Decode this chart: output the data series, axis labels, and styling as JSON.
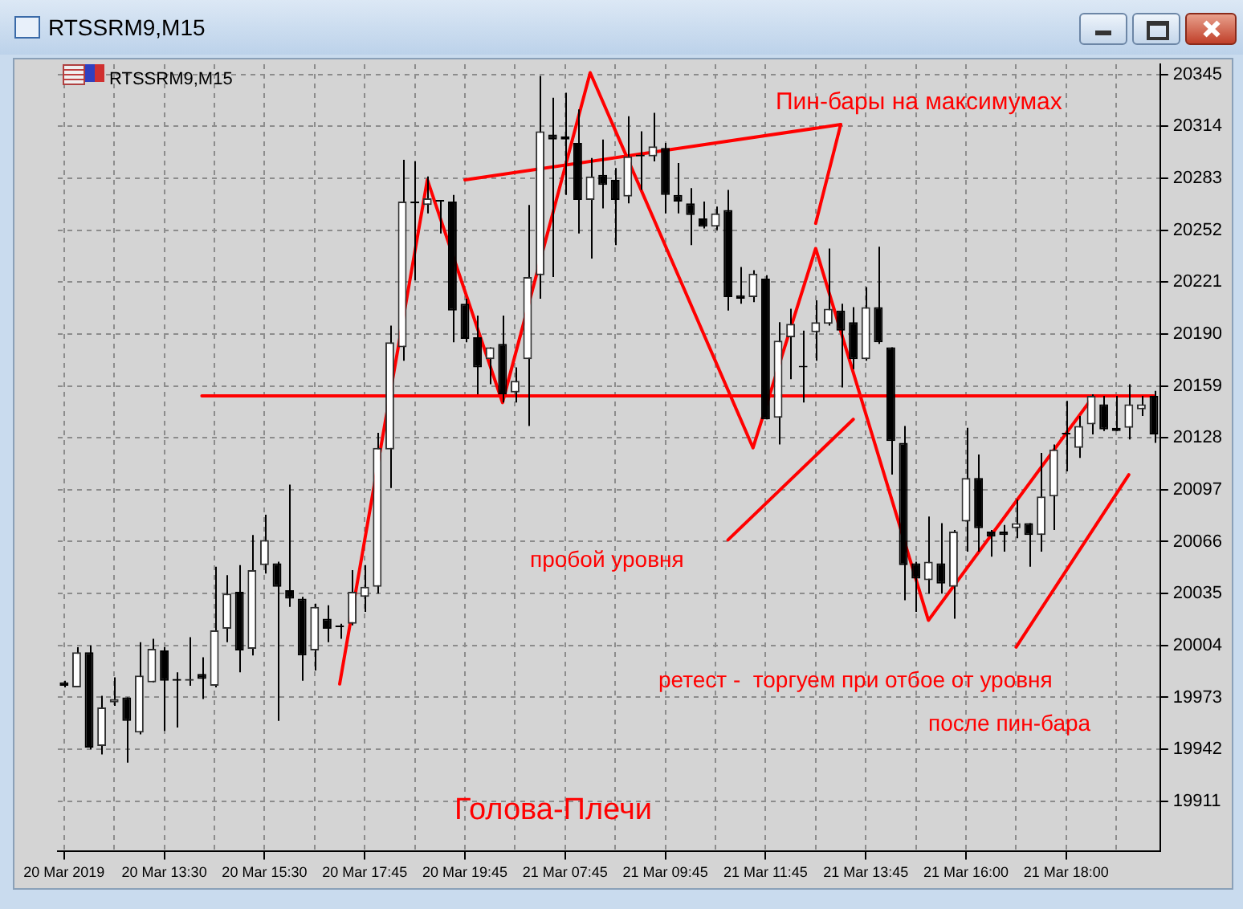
{
  "chart_data": {
    "type": "candlestick",
    "title": "RTSSRM9,M15",
    "categories": [
      "20 Mar 2019",
      null,
      null,
      null,
      null,
      null,
      null,
      null,
      "20 Mar 13:30",
      null,
      null,
      null,
      null,
      null,
      null,
      null,
      "20 Mar 15:30",
      null,
      null,
      null,
      null,
      null,
      null,
      null,
      "20 Mar 17:45",
      null,
      null,
      null,
      null,
      null,
      null,
      null,
      "20 Mar 19:45",
      null,
      null,
      null,
      null,
      null,
      null,
      null,
      "21 Mar 07:45",
      null,
      null,
      null,
      null,
      null,
      null,
      null,
      "21 Mar 09:45",
      null,
      null,
      null,
      null,
      null,
      null,
      null,
      "21 Mar 11:45",
      null,
      null,
      null,
      null,
      null,
      null,
      null,
      "21 Mar 13:45",
      null,
      null,
      null,
      null,
      null,
      null,
      null,
      "21 Mar 16:00",
      null,
      null,
      null,
      null,
      null,
      null,
      null,
      "21 Mar 18:00",
      null,
      null,
      null,
      null,
      null,
      null,
      null
    ],
    "ohlc": [
      [
        19982,
        19983,
        19979,
        19980
      ],
      [
        19979,
        20003,
        19979,
        20000
      ],
      [
        20000,
        20004,
        19942,
        19943
      ],
      [
        19944,
        19974,
        19939,
        19967
      ],
      [
        19970,
        19985,
        19968,
        19972
      ],
      [
        19973,
        19973,
        19934,
        19959
      ],
      [
        19952,
        20006,
        19951,
        19986
      ],
      [
        19982,
        20008,
        19982,
        20002
      ],
      [
        20001,
        20003,
        19953,
        19983
      ],
      [
        19984,
        19988,
        19955,
        19983
      ],
      [
        19983,
        20009,
        19980,
        19984
      ],
      [
        19987,
        19997,
        19972,
        19984
      ],
      [
        19980,
        20051,
        19979,
        20013
      ],
      [
        20014,
        20046,
        20006,
        20035
      ],
      [
        20036,
        20052,
        19988,
        20001
      ],
      [
        20002,
        20070,
        19998,
        20049
      ],
      [
        20052,
        20082,
        20047,
        20067
      ],
      [
        20053,
        20054,
        19959,
        20039
      ],
      [
        20037,
        20100,
        20027,
        20032
      ],
      [
        20032,
        20033,
        19983,
        19998
      ],
      [
        20001,
        20029,
        19989,
        20027
      ],
      [
        20020,
        20028,
        20006,
        20014
      ],
      [
        20015,
        20017,
        20008,
        20015
      ],
      [
        20017,
        20049,
        20016,
        20036
      ],
      [
        20033,
        20052,
        20024,
        20039
      ],
      [
        20039,
        20131,
        20035,
        20122
      ],
      [
        20121,
        20195,
        20098,
        20185
      ],
      [
        20182,
        20294,
        20174,
        20269
      ],
      [
        20269,
        20293,
        20222,
        20268
      ],
      [
        20267,
        20284,
        20262,
        20271
      ],
      [
        20270,
        20270,
        20250,
        20269
      ],
      [
        20269,
        20273,
        20185,
        20204
      ],
      [
        20208,
        20211,
        20185,
        20187
      ],
      [
        20188,
        20201,
        20154,
        20170
      ],
      [
        20175,
        20182,
        20160,
        20182
      ],
      [
        20184,
        20201,
        20149,
        20154
      ],
      [
        20155,
        20170,
        20149,
        20162
      ],
      [
        20175,
        20267,
        20135,
        20224
      ],
      [
        20225,
        20344,
        20211,
        20311
      ],
      [
        20309,
        20331,
        20224,
        20306
      ],
      [
        20308,
        20334,
        20273,
        20306
      ],
      [
        20304,
        20324,
        20250,
        20270
      ],
      [
        20270,
        20295,
        20235,
        20284
      ],
      [
        20285,
        20306,
        20265,
        20279
      ],
      [
        20282,
        20289,
        20243,
        20270
      ],
      [
        20272,
        20320,
        20268,
        20296
      ],
      [
        20297,
        20311,
        20276,
        20296
      ],
      [
        20296,
        20322,
        20293,
        20302
      ],
      [
        20301,
        20304,
        20262,
        20273
      ],
      [
        20273,
        20292,
        20262,
        20269
      ],
      [
        20268,
        20277,
        20243,
        20261
      ],
      [
        20259,
        20269,
        20253,
        20254
      ],
      [
        20254,
        20266,
        20252,
        20262
      ],
      [
        20264,
        20276,
        20204,
        20212
      ],
      [
        20213,
        20230,
        20208,
        20211
      ],
      [
        20212,
        20228,
        20209,
        20226
      ],
      [
        20223,
        20225,
        20139,
        20139
      ],
      [
        20140,
        20197,
        20124,
        20186
      ],
      [
        20188,
        20205,
        20163,
        20196
      ],
      [
        20170,
        20192,
        20149,
        20170
      ],
      [
        20191,
        20210,
        20174,
        20197
      ],
      [
        20196,
        20241,
        20195,
        20205
      ],
      [
        20204,
        20208,
        20158,
        20192
      ],
      [
        20197,
        20206,
        20169,
        20175
      ],
      [
        20175,
        20218,
        20174,
        20206
      ],
      [
        20206,
        20242,
        20184,
        20185
      ],
      [
        20182,
        20182,
        20106,
        20126
      ],
      [
        20125,
        20135,
        20031,
        20052
      ],
      [
        20053,
        20054,
        20024,
        20044
      ],
      [
        20043,
        20081,
        20035,
        20054
      ],
      [
        20053,
        20077,
        20035,
        20041
      ],
      [
        20039,
        20073,
        20020,
        20072
      ],
      [
        20078,
        20134,
        20060,
        20104
      ],
      [
        20104,
        20118,
        20060,
        20074
      ],
      [
        20072,
        20073,
        20057,
        20069
      ],
      [
        20072,
        20076,
        20060,
        20070
      ],
      [
        20074,
        20091,
        20068,
        20077
      ],
      [
        20077,
        20077,
        20051,
        20070
      ],
      [
        20070,
        20119,
        20060,
        20093
      ],
      [
        20093,
        20124,
        20073,
        20121
      ],
      [
        20130,
        20150,
        20108,
        20130
      ],
      [
        20122,
        20141,
        20116,
        20135
      ],
      [
        20136,
        20154,
        20130,
        20153
      ],
      [
        20148,
        20153,
        20132,
        20133
      ],
      [
        20134,
        20153,
        20132,
        20132
      ],
      [
        20134,
        20160,
        20127,
        20148
      ],
      [
        20145,
        20153,
        20141,
        20148
      ],
      [
        20153,
        20156,
        20125,
        20130
      ]
    ],
    "series": [
      {
        "type": "line",
        "color": "#ff0000",
        "values": [
          null,
          null,
          null,
          null,
          null,
          null,
          null,
          null,
          null,
          null,
          null,
          null,
          null,
          null,
          null,
          null,
          null,
          null,
          null,
          null,
          null,
          null,
          19981,
          null,
          null,
          null,
          null,
          null,
          null,
          20282,
          null,
          null,
          null,
          null,
          null,
          20149,
          null,
          null,
          null,
          null,
          null,
          null,
          20346,
          null,
          null,
          null,
          null,
          null,
          null,
          null,
          null,
          null,
          null,
          null,
          null,
          20122,
          null,
          null,
          null,
          null,
          20241,
          null,
          null,
          null,
          null,
          null,
          null,
          null,
          null,
          20019,
          null,
          null,
          null,
          null,
          null,
          null,
          null,
          null,
          null,
          null,
          null,
          null,
          20151,
          null,
          null,
          null,
          null,
          null
        ]
      },
      {
        "type": "line",
        "color": "#ff0000",
        "values": [
          null,
          null,
          null,
          null,
          null,
          null,
          null,
          null,
          null,
          null,
          null,
          20153,
          null,
          null,
          null,
          null,
          null,
          null,
          null,
          null,
          null,
          null,
          null,
          null,
          null,
          null,
          null,
          null,
          null,
          null,
          null,
          null,
          null,
          null,
          null,
          null,
          null,
          null,
          null,
          null,
          null,
          null,
          null,
          null,
          null,
          null,
          null,
          null,
          null,
          null,
          null,
          null,
          null,
          null,
          null,
          null,
          null,
          null,
          null,
          null,
          null,
          null,
          null,
          null,
          null,
          null,
          null,
          null,
          null,
          null,
          null,
          null,
          null,
          null,
          null,
          null,
          null,
          null,
          null,
          null,
          null,
          null,
          null,
          null,
          null,
          null,
          null,
          20153
        ]
      },
      {
        "type": "line",
        "color": "#ff0000",
        "values": [
          null,
          null,
          null,
          null,
          null,
          null,
          null,
          null,
          null,
          null,
          null,
          null,
          null,
          null,
          null,
          null,
          null,
          null,
          null,
          null,
          null,
          null,
          null,
          null,
          null,
          null,
          null,
          null,
          null,
          null,
          null,
          null,
          20282,
          null,
          null,
          null,
          null,
          null,
          null,
          null,
          null,
          null,
          null,
          null,
          null,
          null,
          null,
          null,
          null,
          null,
          null,
          null,
          null,
          null,
          null,
          null,
          null,
          null,
          null,
          null,
          null,
          null,
          20315,
          null,
          null,
          null,
          null,
          null,
          null,
          null,
          null,
          null,
          null,
          null,
          null,
          null,
          null,
          null,
          null,
          null,
          null,
          null,
          null,
          null,
          null,
          null,
          null,
          null
        ]
      },
      {
        "type": "line",
        "color": "#ff0000",
        "values": [
          null,
          null,
          null,
          null,
          null,
          null,
          null,
          null,
          null,
          null,
          null,
          null,
          null,
          null,
          null,
          null,
          null,
          null,
          null,
          null,
          null,
          null,
          null,
          null,
          null,
          null,
          null,
          null,
          null,
          null,
          null,
          null,
          null,
          null,
          null,
          null,
          null,
          null,
          null,
          null,
          null,
          null,
          null,
          null,
          null,
          null,
          null,
          null,
          null,
          null,
          null,
          null,
          null,
          null,
          null,
          null,
          null,
          null,
          null,
          null,
          20256,
          null,
          20315,
          null,
          null,
          null,
          null,
          null,
          null,
          null,
          null,
          null,
          null,
          null,
          null,
          null,
          null,
          null,
          null,
          null,
          null,
          null,
          null,
          null,
          null,
          null,
          null,
          null
        ]
      },
      {
        "type": "line",
        "color": "#ff0000",
        "values": [
          null,
          null,
          null,
          null,
          null,
          null,
          null,
          null,
          null,
          null,
          null,
          null,
          null,
          null,
          null,
          null,
          null,
          null,
          null,
          null,
          null,
          null,
          null,
          null,
          null,
          null,
          null,
          null,
          null,
          null,
          null,
          null,
          null,
          null,
          null,
          null,
          null,
          null,
          null,
          null,
          null,
          null,
          null,
          null,
          null,
          null,
          null,
          null,
          null,
          null,
          null,
          null,
          null,
          20067,
          null,
          null,
          null,
          null,
          null,
          null,
          null,
          null,
          null,
          20139,
          null,
          null,
          null,
          null,
          null,
          null,
          null,
          null,
          null,
          null,
          null,
          null,
          null,
          null,
          null,
          null,
          null,
          null,
          null,
          null,
          null,
          null,
          null,
          null
        ]
      },
      {
        "type": "line",
        "color": "#ff0000",
        "values": [
          null,
          null,
          null,
          null,
          null,
          null,
          null,
          null,
          null,
          null,
          null,
          null,
          null,
          null,
          null,
          null,
          null,
          null,
          null,
          null,
          null,
          null,
          null,
          null,
          null,
          null,
          null,
          null,
          null,
          null,
          null,
          null,
          null,
          null,
          null,
          null,
          null,
          null,
          null,
          null,
          null,
          null,
          null,
          null,
          null,
          null,
          null,
          null,
          null,
          null,
          null,
          null,
          null,
          null,
          null,
          null,
          null,
          null,
          null,
          null,
          null,
          null,
          null,
          null,
          null,
          null,
          null,
          null,
          null,
          null,
          null,
          null,
          null,
          null,
          null,
          null,
          20003,
          null,
          null,
          null,
          null,
          null,
          null,
          null,
          null,
          20106,
          null,
          null
        ]
      }
    ],
    "ylim": [
      19881,
      20351
    ],
    "yticks": [
      19911,
      19942,
      19973,
      20004,
      20035,
      20066,
      20097,
      20128,
      20159,
      20190,
      20221,
      20252,
      20283,
      20314,
      20345
    ],
    "grid": true,
    "annotations": [
      "Пин-бары на максимумах",
      "пробой уровня",
      "ретест -  торгуем при отбое от уровня",
      "после пин-бара",
      "Голова-Плечи"
    ]
  }
}
